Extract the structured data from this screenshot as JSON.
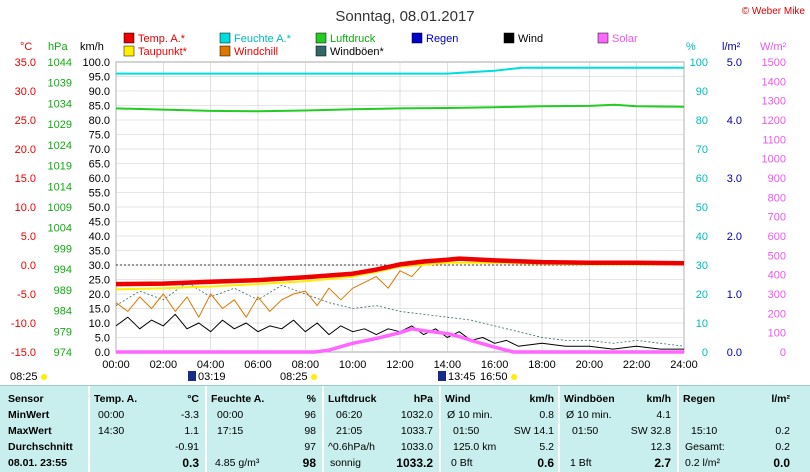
{
  "title": "Sonntag, 08.01.2017",
  "copyright": "© Weber Mike",
  "colors": {
    "temp": "#ee0000",
    "feuchte": "#00dddd",
    "luftdruck": "#22cc22",
    "wind": "#000000",
    "solar": "#ff66ff",
    "taupunkt": "#ffee00",
    "windchill": "#dd7700",
    "windboen": "#336666",
    "regen": "#0000cc",
    "table_bg": "#c8eeee"
  },
  "legend": [
    {
      "label": "Temp. A.*",
      "color": "#ee0000",
      "text_color": "#ee0000"
    },
    {
      "label": "Feuchte A.*",
      "color": "#00dddd",
      "text_color": "#00bbbb"
    },
    {
      "label": "Luftdruck",
      "color": "#22cc22",
      "text_color": "#11aa11"
    },
    {
      "label": "Regen",
      "color": "#0000cc",
      "text_color": "#0000cc"
    },
    {
      "label": "Wind",
      "color": "#000000",
      "text_color": "#000000"
    },
    {
      "label": "Solar",
      "color": "#ff66ff",
      "text_color": "#ee55ee"
    },
    {
      "label": "Taupunkt*",
      "color": "#ffee00",
      "text_color": "#ee0000"
    },
    {
      "label": "Windchill",
      "color": "#dd7700",
      "text_color": "#ee0000"
    },
    {
      "label": "Windböen*",
      "color": "#336666",
      "text_color": "#000000"
    }
  ],
  "axis_units": {
    "temp": "°C",
    "pressure": "hPa",
    "wind": "km/h",
    "humidity": "%",
    "rain": "l/m²",
    "solar": "W/m²"
  },
  "axes": {
    "temp": {
      "ticks": [
        "35.0",
        "30.0",
        "25.0",
        "20.0",
        "15.0",
        "10.0",
        "5.0",
        "0.0",
        "-5.0",
        "-10.0",
        "-15.0"
      ],
      "color": "#ee0000"
    },
    "pressure": {
      "ticks": [
        "1044",
        "1039",
        "1034",
        "1029",
        "1024",
        "1019",
        "1014",
        "1009",
        "1004",
        "999",
        "994",
        "989",
        "984",
        "979",
        "974"
      ],
      "color": "#11aa11"
    },
    "wind": {
      "ticks": [
        "100.0",
        "95.0",
        "90.0",
        "85.0",
        "80.0",
        "75.0",
        "70.0",
        "65.0",
        "60.0",
        "55.0",
        "50.0",
        "45.0",
        "40.0",
        "35.0",
        "30.0",
        "25.0",
        "20.0",
        "15.0",
        "10.0",
        "5.0",
        "0.0"
      ],
      "color": "#000000"
    },
    "humidity": {
      "ticks": [
        "100",
        "90",
        "80",
        "70",
        "60",
        "50",
        "40",
        "30",
        "20",
        "10",
        "0"
      ],
      "color": "#00bbbb"
    },
    "rain": {
      "ticks": [
        "5.0",
        "4.0",
        "3.0",
        "2.0",
        "1.0",
        "0.0"
      ],
      "color": "#0000aa"
    },
    "solar": {
      "ticks": [
        "1500",
        "1400",
        "1300",
        "1200",
        "1100",
        "1000",
        "900",
        "800",
        "700",
        "600",
        "500",
        "400",
        "300",
        "200",
        "100",
        "0"
      ],
      "color": "#ee55ee"
    },
    "x": {
      "ticks": [
        "00:00",
        "02:00",
        "04:00",
        "06:00",
        "08:00",
        "10:00",
        "12:00",
        "14:00",
        "16:00",
        "18:00",
        "20:00",
        "22:00",
        "24:00"
      ]
    }
  },
  "sun_times": [
    {
      "label": "08:25",
      "pos": "left"
    },
    {
      "label": "03:19",
      "pos": "moonrise"
    },
    {
      "label": "08:25",
      "pos": "sunrise"
    },
    {
      "label": "13:45",
      "pos": "moonset"
    },
    {
      "label": "16:50",
      "pos": "sunset"
    }
  ],
  "chart_data": {
    "type": "line",
    "title": "Sonntag, 08.01.2017",
    "x_unit": "hours",
    "xlim": [
      0,
      24
    ],
    "grid": true,
    "series": [
      {
        "name": "Temp. A.*",
        "axis": "temp",
        "points": [
          [
            0,
            -3.3
          ],
          [
            2,
            -3.2
          ],
          [
            4,
            -2.9
          ],
          [
            6,
            -2.6
          ],
          [
            8,
            -2.1
          ],
          [
            10,
            -1.5
          ],
          [
            11,
            -0.8
          ],
          [
            12,
            0.1
          ],
          [
            13,
            0.6
          ],
          [
            14,
            0.9
          ],
          [
            14.5,
            1.1
          ],
          [
            16,
            0.8
          ],
          [
            18,
            0.5
          ],
          [
            20,
            0.4
          ],
          [
            22,
            0.4
          ],
          [
            24,
            0.3
          ]
        ]
      },
      {
        "name": "Taupunkt*",
        "axis": "temp",
        "points": [
          [
            0,
            -4.2
          ],
          [
            2,
            -4.0
          ],
          [
            4,
            -3.7
          ],
          [
            6,
            -3.3
          ],
          [
            8,
            -2.8
          ],
          [
            10,
            -2.0
          ],
          [
            11,
            -1.2
          ],
          [
            12,
            -0.3
          ],
          [
            14,
            0.4
          ],
          [
            16,
            0.4
          ],
          [
            18,
            0.2
          ],
          [
            20,
            0.1
          ],
          [
            24,
            0.1
          ]
        ]
      },
      {
        "name": "Feuchte A.*",
        "axis": "humidity",
        "points": [
          [
            0,
            96
          ],
          [
            2,
            96
          ],
          [
            4,
            96
          ],
          [
            6,
            96
          ],
          [
            8,
            96
          ],
          [
            10,
            96
          ],
          [
            12,
            96
          ],
          [
            14,
            96
          ],
          [
            15,
            96.5
          ],
          [
            16,
            97
          ],
          [
            17.15,
            98
          ],
          [
            18,
            98
          ],
          [
            20,
            98
          ],
          [
            22,
            98
          ],
          [
            24,
            98
          ]
        ]
      },
      {
        "name": "Luftdruck",
        "axis": "pressure",
        "points": [
          [
            0,
            1032.8
          ],
          [
            2,
            1032.5
          ],
          [
            4,
            1032.2
          ],
          [
            6,
            1032.1
          ],
          [
            8,
            1032.3
          ],
          [
            10,
            1032.6
          ],
          [
            12,
            1032.8
          ],
          [
            14,
            1032.9
          ],
          [
            16,
            1033.1
          ],
          [
            18,
            1033.3
          ],
          [
            20,
            1033.4
          ],
          [
            21.08,
            1033.7
          ],
          [
            22,
            1033.3
          ],
          [
            24,
            1033.2
          ]
        ]
      },
      {
        "name": "Windchill",
        "axis": "temp",
        "points": [
          [
            0,
            -6.5
          ],
          [
            0.5,
            -8
          ],
          [
            1,
            -5.5
          ],
          [
            1.5,
            -7.5
          ],
          [
            2,
            -5
          ],
          [
            2.5,
            -8
          ],
          [
            3,
            -5.5
          ],
          [
            3.5,
            -9
          ],
          [
            4,
            -5
          ],
          [
            4.5,
            -7.5
          ],
          [
            5,
            -6
          ],
          [
            5.5,
            -9
          ],
          [
            6,
            -5.5
          ],
          [
            6.5,
            -8
          ],
          [
            7,
            -6
          ],
          [
            7.5,
            -5
          ],
          [
            8,
            -4.5
          ],
          [
            8.5,
            -7
          ],
          [
            9,
            -4
          ],
          [
            9.5,
            -6
          ],
          [
            10,
            -4
          ],
          [
            10.5,
            -3
          ],
          [
            11,
            -2
          ],
          [
            11.5,
            -4
          ],
          [
            12,
            -1
          ],
          [
            12.5,
            -2
          ],
          [
            13,
            0.3
          ],
          [
            14,
            0.9
          ],
          [
            16,
            0.8
          ],
          [
            18,
            0.5
          ],
          [
            24,
            0.3
          ]
        ]
      },
      {
        "name": "Wind",
        "axis": "wind",
        "points": [
          [
            0,
            9
          ],
          [
            0.5,
            12
          ],
          [
            1,
            8
          ],
          [
            1.5,
            11
          ],
          [
            2,
            9
          ],
          [
            2.5,
            13
          ],
          [
            3,
            8
          ],
          [
            3.5,
            10
          ],
          [
            4,
            7
          ],
          [
            4.5,
            11
          ],
          [
            5,
            8
          ],
          [
            5.5,
            10
          ],
          [
            6,
            7
          ],
          [
            6.5,
            9
          ],
          [
            7,
            8
          ],
          [
            7.5,
            11
          ],
          [
            8,
            7
          ],
          [
            8.5,
            10
          ],
          [
            9,
            6
          ],
          [
            9.5,
            9
          ],
          [
            10,
            7
          ],
          [
            10.5,
            8
          ],
          [
            11,
            6
          ],
          [
            11.5,
            8
          ],
          [
            12,
            7
          ],
          [
            12.5,
            9
          ],
          [
            13,
            6
          ],
          [
            13.5,
            8
          ],
          [
            14,
            5
          ],
          [
            14.5,
            7
          ],
          [
            15,
            4
          ],
          [
            15.5,
            5
          ],
          [
            16,
            3
          ],
          [
            16.5,
            4
          ],
          [
            17,
            2
          ],
          [
            18,
            3
          ],
          [
            19,
            2
          ],
          [
            20,
            2
          ],
          [
            21,
            1
          ],
          [
            22,
            2
          ],
          [
            23,
            1
          ],
          [
            24,
            1
          ]
        ]
      },
      {
        "name": "Windböen*",
        "axis": "wind",
        "points": [
          [
            0,
            16
          ],
          [
            1,
            21
          ],
          [
            2,
            18
          ],
          [
            3,
            24
          ],
          [
            4,
            19
          ],
          [
            5,
            22
          ],
          [
            6,
            18
          ],
          [
            7,
            23
          ],
          [
            8,
            20
          ],
          [
            9,
            17
          ],
          [
            10,
            15
          ],
          [
            11,
            16
          ],
          [
            12,
            14
          ],
          [
            13,
            13
          ],
          [
            14,
            12
          ],
          [
            15,
            11
          ],
          [
            16,
            9
          ],
          [
            17,
            7
          ],
          [
            18,
            5
          ],
          [
            19,
            4
          ],
          [
            20,
            4
          ],
          [
            21,
            3
          ],
          [
            22,
            4
          ],
          [
            23,
            3
          ],
          [
            24,
            2
          ]
        ]
      },
      {
        "name": "Solar",
        "axis": "solar",
        "points": [
          [
            0,
            0
          ],
          [
            8.4,
            0
          ],
          [
            9,
            10
          ],
          [
            10,
            45
          ],
          [
            11,
            70
          ],
          [
            12,
            100
          ],
          [
            12.5,
            120
          ],
          [
            13,
            110
          ],
          [
            14,
            95
          ],
          [
            14.5,
            80
          ],
          [
            15,
            60
          ],
          [
            16,
            25
          ],
          [
            16.8,
            0
          ],
          [
            24,
            0
          ]
        ]
      },
      {
        "name": "Regen",
        "axis": "rain",
        "points": [
          [
            0,
            0
          ],
          [
            24,
            0
          ]
        ]
      }
    ]
  },
  "table": {
    "labels": {
      "sensor": "Sensor",
      "min": "MinWert",
      "max": "MaxWert",
      "avg": "Durchschnitt",
      "date": "08.01. 23:55"
    },
    "temp": {
      "header": "Temp. A.",
      "unit": "°C",
      "min_time": "00:00",
      "min": "-3.3",
      "max_time": "14:30",
      "max": "1.1",
      "avg": "-0.91",
      "current": "0.3"
    },
    "feuchte": {
      "header": "Feuchte A.",
      "unit": "%",
      "min_time": "00:00",
      "min": "96",
      "max_time": "17:15",
      "max": "98",
      "avg": "97",
      "abs": "4.85 g/m³",
      "current": "98"
    },
    "luftdruck": {
      "header": "Luftdruck",
      "unit": "hPa",
      "min_time": "06:20",
      "min": "1032.0",
      "max_time": "21:05",
      "max": "1033.7",
      "trend": "^0.6hPa/h",
      "avg": "1033.0",
      "weather": "sonnig",
      "current": "1033.2"
    },
    "wind": {
      "header": "Wind",
      "unit": "km/h",
      "avg10_label": "Ø 10 min.",
      "avg10": "0.8",
      "max_time": "01:50",
      "max_dir": "SW 14.1",
      "dist": "125.0 km",
      "avg": "5.2",
      "bft": "0 Bft",
      "current": "0.6"
    },
    "boen": {
      "header": "Windböen",
      "unit": "km/h",
      "avg10_label": "Ø 10 min.",
      "avg10": "4.1",
      "max_time": "01:50",
      "max_dir": "SW 32.8",
      "avg": "12.3",
      "bft": "1 Bft",
      "current": "2.7"
    },
    "regen": {
      "header": "Regen",
      "unit": "l/m²",
      "min": "",
      "max_time": "15:10",
      "max": "0.2",
      "total_label": "Gesamt:",
      "total": "0.2",
      "rate": "0.2 l/m²",
      "current": "0.0"
    }
  }
}
